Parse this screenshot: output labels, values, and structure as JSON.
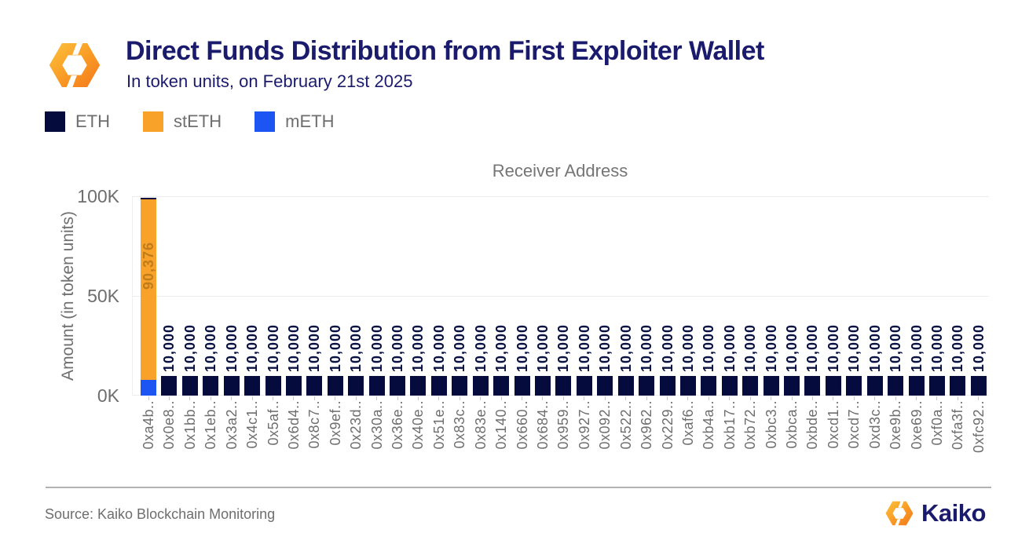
{
  "header": {
    "title": "Direct Funds Distribution from First Exploiter Wallet",
    "subtitle": "In token units, on February 21st 2025"
  },
  "legend": [
    {
      "label": "ETH",
      "color": "#060b3d"
    },
    {
      "label": "stETH",
      "color": "#f9a229"
    },
    {
      "label": "mETH",
      "color": "#1d55f2"
    }
  ],
  "chart_data": {
    "type": "bar",
    "stacked": true,
    "title": "Receiver Address",
    "xlabel": "Receiver Address",
    "ylabel": "Amount (in token units)",
    "yticks": [
      "0K",
      "50K",
      "100K"
    ],
    "ylim": [
      0,
      100000
    ],
    "grid": "horizontal",
    "legend_position": "top-left",
    "categories": [
      "0xa4b..",
      "0x0e8..",
      "0x1bb..",
      "0x1eb..",
      "0x3a2..",
      "0x4c1..",
      "0x5af..",
      "0x6d4..",
      "0x8c7..",
      "0x9ef..",
      "0x23d..",
      "0x30a..",
      "0x36e..",
      "0x40e..",
      "0x51e..",
      "0x83c..",
      "0x83e..",
      "0x140..",
      "0x660..",
      "0x684..",
      "0x959..",
      "0x927..",
      "0x092..",
      "0x522..",
      "0x962..",
      "0x229..",
      "0xaf6..",
      "0xb4a..",
      "0xb17..",
      "0xb72..",
      "0xbc3..",
      "0xbca..",
      "0xbde..",
      "0xcd1..",
      "0xcd7..",
      "0xd3c..",
      "0xe9b..",
      "0xe69..",
      "0xf0a..",
      "0xfa3f..",
      "0xfc92.."
    ],
    "series": [
      {
        "name": "ETH",
        "color": "#060b3d",
        "values": [
          1000,
          10000,
          10000,
          10000,
          10000,
          10000,
          10000,
          10000,
          10000,
          10000,
          10000,
          10000,
          10000,
          10000,
          10000,
          10000,
          10000,
          10000,
          10000,
          10000,
          10000,
          10000,
          10000,
          10000,
          10000,
          10000,
          10000,
          10000,
          10000,
          10000,
          10000,
          10000,
          10000,
          10000,
          10000,
          10000,
          10000,
          10000,
          10000,
          10000,
          10000
        ]
      },
      {
        "name": "stETH",
        "color": "#f9a229",
        "values": [
          90376,
          0,
          0,
          0,
          0,
          0,
          0,
          0,
          0,
          0,
          0,
          0,
          0,
          0,
          0,
          0,
          0,
          0,
          0,
          0,
          0,
          0,
          0,
          0,
          0,
          0,
          0,
          0,
          0,
          0,
          0,
          0,
          0,
          0,
          0,
          0,
          0,
          0,
          0,
          0,
          0
        ]
      },
      {
        "name": "mETH",
        "color": "#1d55f2",
        "values": [
          8000,
          0,
          0,
          0,
          0,
          0,
          0,
          0,
          0,
          0,
          0,
          0,
          0,
          0,
          0,
          0,
          0,
          0,
          0,
          0,
          0,
          0,
          0,
          0,
          0,
          0,
          0,
          0,
          0,
          0,
          0,
          0,
          0,
          0,
          0,
          0,
          0,
          0,
          0,
          0,
          0
        ]
      }
    ],
    "value_labels": [
      "90,376",
      "10,000",
      "10,000",
      "10,000",
      "10,000",
      "10,000",
      "10,000",
      "10,000",
      "10,000",
      "10,000",
      "10,000",
      "10,000",
      "10,000",
      "10,000",
      "10,000",
      "10,000",
      "10,000",
      "10,000",
      "10,000",
      "10,000",
      "10,000",
      "10,000",
      "10,000",
      "10,000",
      "10,000",
      "10,000",
      "10,000",
      "10,000",
      "10,000",
      "10,000",
      "10,000",
      "10,000",
      "10,000",
      "10,000",
      "10,000",
      "10,000",
      "10,000",
      "10,000",
      "10,000",
      "10,000",
      "10,000"
    ]
  },
  "footer": {
    "source": "Source: Kaiko Blockchain Monitoring",
    "brand": "Kaiko"
  }
}
